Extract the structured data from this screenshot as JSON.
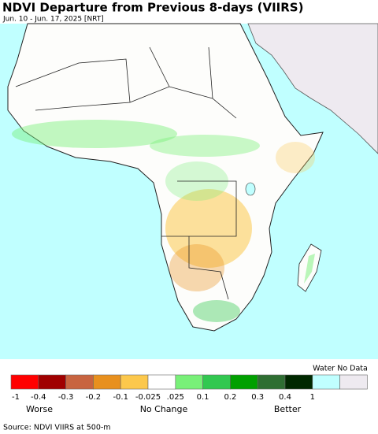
{
  "header": {
    "title": "NDVI Departure from Previous 8-days (VIIRS)",
    "subtitle": "Jun. 10 - Jun. 17, 2025 [NRT]"
  },
  "legend": {
    "colors": [
      "#ff0000",
      "#a00000",
      "#c86440",
      "#e8901e",
      "#fcc84c",
      "#ffffff",
      "#78f078",
      "#32c850",
      "#00a000",
      "#2e6e32",
      "#002800",
      "#c0ffff",
      "#eeeaf0"
    ],
    "labels": [
      "-1",
      "-0.4",
      "-0.3",
      "-0.2",
      "-0.1",
      "-0.025",
      ".025",
      "0.1",
      "0.2",
      "0.3",
      "0.4",
      "1"
    ],
    "extra_label": "Water No Data",
    "captions": [
      "Worse",
      "No Change",
      "Better"
    ]
  },
  "footer": {
    "source": "Source: NDVI VIIRS at 500-m"
  }
}
